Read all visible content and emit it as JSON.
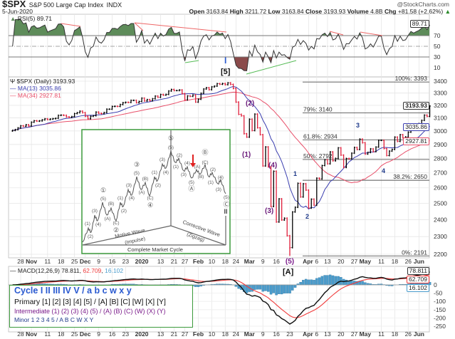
{
  "header": {
    "symbol": "$SPX",
    "name": "S&P 500 Large Cap Index",
    "exchange": "INDX",
    "date": "5-Jun-2020",
    "source": "@StockCharts.com",
    "open_label": "Open",
    "open": "3163.84",
    "high_label": "High",
    "high": "3211.72",
    "low_label": "Low",
    "low": "3163.84",
    "close_label": "Close",
    "close": "3193.93",
    "volume_label": "Volume",
    "volume": "4.8B",
    "chg_label": "Chg",
    "chg": "+81.58 (+2.62%)",
    "chg_arrow": "▲"
  },
  "rsi": {
    "label": "RSI(5) 89.71",
    "value": "89.71",
    "levels": [
      70,
      50,
      30
    ],
    "ticks": [
      "70",
      "50",
      "30",
      "10"
    ],
    "ticks_values": [
      70,
      50,
      30,
      10
    ]
  },
  "price_panel": {
    "label": "$SPX (Daily) 3193.93",
    "ma13_label": "MA(13) 3035.86",
    "ma13_value": "3035.86",
    "ma34_label": "MA(34) 2927.81",
    "ma34_value": "2927.81",
    "last_value": "3193.93"
  },
  "macd": {
    "label_main": "MACD(12,26,9) 78.811",
    "label_signal": "62.709",
    "label_hist": "16.102",
    "macd_value": "78.811",
    "signal_value": "62.709",
    "hist_value": "16.102",
    "ticks": [
      0,
      -50,
      -100,
      -150,
      -200,
      -250
    ]
  },
  "colors": {
    "up_bar": "#000000",
    "down_bar": "#e0203c",
    "ma13": "#3b3fb0",
    "ma34": "#e8506a",
    "rsi_fill_high": "#5e8c5a",
    "rsi_fill_low": "#8a4a4a",
    "macd_hist": "#4a9ccc",
    "macd_line": "#111111",
    "signal_line": "#f03c3c",
    "legend_border": "#3c9a3c"
  },
  "fib_levels": [
    {
      "label": "100%: 3393",
      "value": 3393
    },
    {
      "label": "79%: 3140",
      "value": 3140
    },
    {
      "label": "61.8%: 2934",
      "value": 2934
    },
    {
      "label": "50%: 2792",
      "value": 2792
    },
    {
      "label": "38.2%: 2650",
      "value": 2650
    },
    {
      "label": "0%: 2191",
      "value": 2191
    }
  ],
  "wave_labels": {
    "cycle_I": "I",
    "primary_5": "[5]",
    "primary_A": "[A]",
    "int_1": "(1)",
    "int_2": "(2)",
    "int_3": "(3)",
    "int_4": "(4)",
    "int_5": "(5)",
    "minor_1": "1",
    "minor_2": "2",
    "minor_3": "3",
    "minor_4": "4"
  },
  "legend": {
    "cycle": "Cycle I II III IV V / a b c w x y",
    "primary": "Primary [1] [2] [3] [4] [5] / [A] [B] [C] [W] [X] [Y]",
    "intermediate": "Intermediate (1) (2) (3) (4) (5) / (A) (B) (C) (W) (X) (Y)",
    "minor": "Minor 1 2 3 4 5 / A B C W X Y"
  },
  "inset": {
    "title": "Complete Market Cycle",
    "motive": "Motive Wave",
    "motive_sub": "(Impulse)",
    "corrective": "Corrective Wave",
    "corrective_sub": "(Zigzag)",
    "end_mark": "II",
    "labels": [
      "(1)",
      "(2)",
      "(3)",
      "(4)",
      "(5)",
      "①",
      "(A)",
      "(B)",
      "(C)",
      "②",
      "(1)",
      "(2)",
      "(3)",
      "(4)",
      "(5)",
      "③",
      "(A)",
      "(B)",
      "(C)",
      "④",
      "(1)",
      "(2)",
      "(3)",
      "(4)",
      "(5)",
      "⑤",
      "(1)",
      "(2)",
      "(3)",
      "(4)",
      "(5)",
      "Ⓐ",
      "(A)",
      "(B)",
      "(C)",
      "Ⓑ",
      "(1)",
      "(2)",
      "(3)",
      "(4)",
      "(5)",
      "Ⓒ"
    ]
  },
  "chart_data": {
    "type": "ohlc-bar",
    "scale": "log",
    "ylim": [
      2200,
      3400
    ],
    "yticks": [
      3400,
      3300,
      3200,
      3100,
      3000,
      2900,
      2800,
      2700,
      2600,
      2500,
      2400,
      2300,
      2200
    ],
    "xticks": [
      {
        "date": "2019-10-28",
        "label": "28"
      },
      {
        "date": "2019-11-01",
        "label": "Nov",
        "month": true
      },
      {
        "date": "2019-11-11",
        "label": "11"
      },
      {
        "date": "2019-11-18",
        "label": "18"
      },
      {
        "date": "2019-11-25",
        "label": "25"
      },
      {
        "date": "2019-12-02",
        "label": "Dec",
        "month": true
      },
      {
        "date": "2019-12-09",
        "label": "9"
      },
      {
        "date": "2019-12-16",
        "label": "16"
      },
      {
        "date": "2019-12-23",
        "label": "23"
      },
      {
        "date": "2020-01-02",
        "label": "2020",
        "month": true
      },
      {
        "date": "2020-01-13",
        "label": "13"
      },
      {
        "date": "2020-01-21",
        "label": "21"
      },
      {
        "date": "2020-01-27",
        "label": "27"
      },
      {
        "date": "2020-02-03",
        "label": "Feb",
        "month": true
      },
      {
        "date": "2020-02-10",
        "label": "10"
      },
      {
        "date": "2020-02-18",
        "label": "18"
      },
      {
        "date": "2020-02-24",
        "label": "24"
      },
      {
        "date": "2020-03-02",
        "label": "Mar",
        "month": true
      },
      {
        "date": "2020-03-09",
        "label": "9"
      },
      {
        "date": "2020-03-16",
        "label": "16"
      },
      {
        "date": "2020-03-23",
        "label": "23",
        "top_label": "(5)"
      },
      {
        "date": "2020-04-01",
        "label": "Apr",
        "month": true
      },
      {
        "date": "2020-04-06",
        "label": "6"
      },
      {
        "date": "2020-04-13",
        "label": "13"
      },
      {
        "date": "2020-04-20",
        "label": "20"
      },
      {
        "date": "2020-04-27",
        "label": "27"
      },
      {
        "date": "2020-05-01",
        "label": "May",
        "month": true
      },
      {
        "date": "2020-05-11",
        "label": "11"
      },
      {
        "date": "2020-05-18",
        "label": "18"
      },
      {
        "date": "2020-05-26",
        "label": "26"
      },
      {
        "date": "2020-06-01",
        "label": "Jun",
        "month": true
      }
    ],
    "closes": [
      [
        "2019-10-23",
        3004
      ],
      [
        "2019-10-24",
        3010
      ],
      [
        "2019-10-25",
        3023
      ],
      [
        "2019-10-28",
        3039
      ],
      [
        "2019-10-29",
        3036
      ],
      [
        "2019-10-30",
        3047
      ],
      [
        "2019-10-31",
        3038
      ],
      [
        "2019-11-01",
        3067
      ],
      [
        "2019-11-04",
        3078
      ],
      [
        "2019-11-05",
        3075
      ],
      [
        "2019-11-06",
        3077
      ],
      [
        "2019-11-07",
        3085
      ],
      [
        "2019-11-08",
        3093
      ],
      [
        "2019-11-11",
        3087
      ],
      [
        "2019-11-12",
        3091
      ],
      [
        "2019-11-13",
        3094
      ],
      [
        "2019-11-14",
        3097
      ],
      [
        "2019-11-15",
        3120
      ],
      [
        "2019-11-18",
        3122
      ],
      [
        "2019-11-19",
        3120
      ],
      [
        "2019-11-20",
        3108
      ],
      [
        "2019-11-21",
        3104
      ],
      [
        "2019-11-22",
        3110
      ],
      [
        "2019-11-25",
        3134
      ],
      [
        "2019-11-26",
        3141
      ],
      [
        "2019-11-27",
        3153
      ],
      [
        "2019-11-29",
        3141
      ],
      [
        "2019-12-02",
        3113
      ],
      [
        "2019-12-03",
        3093
      ],
      [
        "2019-12-04",
        3113
      ],
      [
        "2019-12-05",
        3117
      ],
      [
        "2019-12-06",
        3146
      ],
      [
        "2019-12-09",
        3136
      ],
      [
        "2019-12-10",
        3133
      ],
      [
        "2019-12-11",
        3142
      ],
      [
        "2019-12-12",
        3169
      ],
      [
        "2019-12-13",
        3169
      ],
      [
        "2019-12-16",
        3191
      ],
      [
        "2019-12-17",
        3192
      ],
      [
        "2019-12-18",
        3191
      ],
      [
        "2019-12-19",
        3206
      ],
      [
        "2019-12-20",
        3221
      ],
      [
        "2019-12-23",
        3224
      ],
      [
        "2019-12-24",
        3223
      ],
      [
        "2019-12-26",
        3240
      ],
      [
        "2019-12-27",
        3240
      ],
      [
        "2019-12-30",
        3221
      ],
      [
        "2019-12-31",
        3231
      ],
      [
        "2020-01-02",
        3258
      ],
      [
        "2020-01-03",
        3235
      ],
      [
        "2020-01-06",
        3246
      ],
      [
        "2020-01-07",
        3237
      ],
      [
        "2020-01-08",
        3253
      ],
      [
        "2020-01-09",
        3275
      ],
      [
        "2020-01-10",
        3265
      ],
      [
        "2020-01-13",
        3288
      ],
      [
        "2020-01-14",
        3283
      ],
      [
        "2020-01-15",
        3289
      ],
      [
        "2020-01-16",
        3317
      ],
      [
        "2020-01-17",
        3330
      ],
      [
        "2020-01-21",
        3321
      ],
      [
        "2020-01-22",
        3321
      ],
      [
        "2020-01-23",
        3326
      ],
      [
        "2020-01-24",
        3295
      ],
      [
        "2020-01-27",
        3244
      ],
      [
        "2020-01-28",
        3276
      ],
      [
        "2020-01-29",
        3273
      ],
      [
        "2020-01-30",
        3284
      ],
      [
        "2020-01-31",
        3226
      ],
      [
        "2020-02-03",
        3249
      ],
      [
        "2020-02-04",
        3298
      ],
      [
        "2020-02-05",
        3334
      ],
      [
        "2020-02-06",
        3345
      ],
      [
        "2020-02-07",
        3328
      ],
      [
        "2020-02-10",
        3352
      ],
      [
        "2020-02-11",
        3358
      ],
      [
        "2020-02-12",
        3379
      ],
      [
        "2020-02-13",
        3374
      ],
      [
        "2020-02-14",
        3380
      ],
      [
        "2020-02-18",
        3370
      ],
      [
        "2020-02-19",
        3386
      ],
      [
        "2020-02-20",
        3373
      ],
      [
        "2020-02-21",
        3338
      ],
      [
        "2020-02-24",
        3226
      ],
      [
        "2020-02-25",
        3128
      ],
      [
        "2020-02-26",
        3116
      ],
      [
        "2020-02-27",
        2979
      ],
      [
        "2020-02-28",
        2954
      ],
      [
        "2020-03-02",
        3090
      ],
      [
        "2020-03-03",
        3003
      ],
      [
        "2020-03-04",
        3130
      ],
      [
        "2020-03-05",
        3024
      ],
      [
        "2020-03-06",
        2972
      ],
      [
        "2020-03-09",
        2747
      ],
      [
        "2020-03-10",
        2882
      ],
      [
        "2020-03-11",
        2741
      ],
      [
        "2020-03-12",
        2481
      ],
      [
        "2020-03-13",
        2711
      ],
      [
        "2020-03-16",
        2386
      ],
      [
        "2020-03-17",
        2529
      ],
      [
        "2020-03-18",
        2398
      ],
      [
        "2020-03-19",
        2409
      ],
      [
        "2020-03-20",
        2305
      ],
      [
        "2020-03-23",
        2237
      ],
      [
        "2020-03-24",
        2447
      ],
      [
        "2020-03-25",
        2476
      ],
      [
        "2020-03-26",
        2630
      ],
      [
        "2020-03-27",
        2541
      ],
      [
        "2020-03-30",
        2627
      ],
      [
        "2020-03-31",
        2585
      ],
      [
        "2020-04-01",
        2471
      ],
      [
        "2020-04-02",
        2527
      ],
      [
        "2020-04-03",
        2489
      ],
      [
        "2020-04-06",
        2664
      ],
      [
        "2020-04-07",
        2659
      ],
      [
        "2020-04-08",
        2750
      ],
      [
        "2020-04-09",
        2790
      ],
      [
        "2020-04-13",
        2762
      ],
      [
        "2020-04-14",
        2846
      ],
      [
        "2020-04-15",
        2783
      ],
      [
        "2020-04-16",
        2800
      ],
      [
        "2020-04-17",
        2875
      ],
      [
        "2020-04-20",
        2823
      ],
      [
        "2020-04-21",
        2737
      ],
      [
        "2020-04-22",
        2799
      ],
      [
        "2020-04-23",
        2798
      ],
      [
        "2020-04-24",
        2837
      ],
      [
        "2020-04-27",
        2878
      ],
      [
        "2020-04-28",
        2863
      ],
      [
        "2020-04-29",
        2939
      ],
      [
        "2020-04-30",
        2912
      ],
      [
        "2020-05-01",
        2831
      ],
      [
        "2020-05-04",
        2842
      ],
      [
        "2020-05-05",
        2868
      ],
      [
        "2020-05-06",
        2848
      ],
      [
        "2020-05-07",
        2881
      ],
      [
        "2020-05-08",
        2930
      ],
      [
        "2020-05-11",
        2930
      ],
      [
        "2020-05-12",
        2870
      ],
      [
        "2020-05-13",
        2820
      ],
      [
        "2020-05-14",
        2852
      ],
      [
        "2020-05-15",
        2864
      ],
      [
        "2020-05-18",
        2954
      ],
      [
        "2020-05-19",
        2922
      ],
      [
        "2020-05-20",
        2972
      ],
      [
        "2020-05-21",
        2949
      ],
      [
        "2020-05-22",
        2955
      ],
      [
        "2020-05-26",
        2991
      ],
      [
        "2020-05-27",
        3036
      ],
      [
        "2020-05-28",
        3030
      ],
      [
        "2020-05-29",
        3044
      ],
      [
        "2020-06-01",
        3056
      ],
      [
        "2020-06-02",
        3081
      ],
      [
        "2020-06-03",
        3122
      ],
      [
        "2020-06-04",
        3112
      ],
      [
        "2020-06-05",
        3194
      ]
    ],
    "low_marker": {
      "date": "2020-03-23",
      "value": 2191
    },
    "indicators": [
      "RSI(5)",
      "MA(13)",
      "MA(34)",
      "MACD(12,26,9)"
    ]
  }
}
